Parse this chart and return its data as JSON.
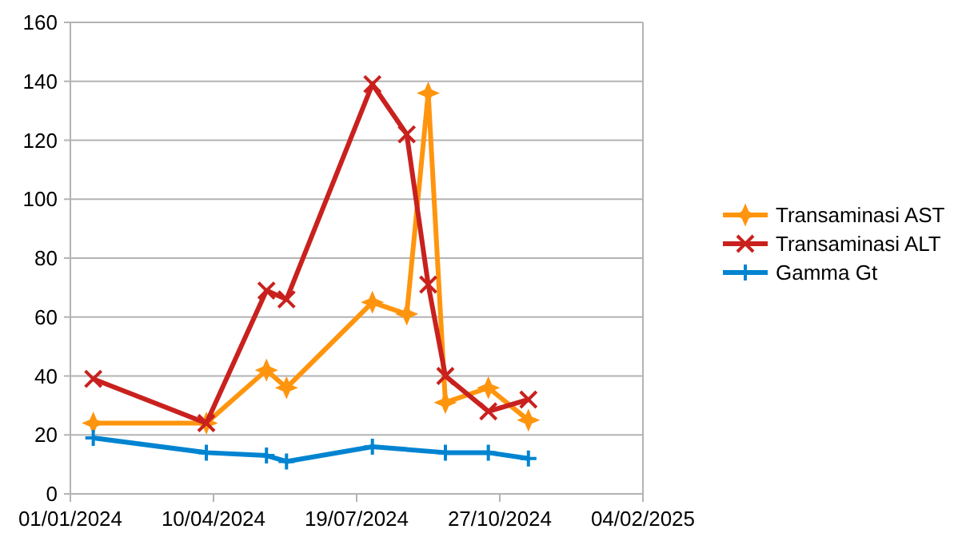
{
  "chart_data": {
    "type": "line",
    "x": [
      "2024-01-17",
      "2024-04-05",
      "2024-05-17",
      "2024-05-31",
      "2024-07-30",
      "2024-08-23",
      "2024-09-07",
      "2024-09-19",
      "2024-10-19",
      "2024-11-16"
    ],
    "series": [
      {
        "name": "Transaminasi AST",
        "color": "#ff950e",
        "marker": "star",
        "values": [
          24,
          24,
          42,
          36,
          65,
          61,
          136,
          31,
          36,
          25
        ]
      },
      {
        "name": "Transaminasi ALT",
        "color": "#c9211e",
        "marker": "cross",
        "values": [
          39,
          24,
          69,
          66,
          139,
          122,
          71,
          40,
          28,
          32
        ]
      },
      {
        "name": "Gamma Gt",
        "color": "#0084d1",
        "marker": "plus",
        "x": [
          "2024-01-17",
          "2024-04-05",
          "2024-05-17",
          "2024-05-31",
          "2024-07-30",
          "2024-09-19",
          "2024-10-19",
          "2024-11-16"
        ],
        "values": [
          19,
          14,
          13,
          11,
          16,
          14,
          14,
          12
        ]
      }
    ],
    "xlim": [
      "2024-01-01",
      "2025-02-04"
    ],
    "xticks": [
      {
        "value": "2024-01-01",
        "label": "01/01/2024"
      },
      {
        "value": "2024-04-10",
        "label": "10/04/2024"
      },
      {
        "value": "2024-07-19",
        "label": "19/07/2024"
      },
      {
        "value": "2024-10-27",
        "label": "27/10/2024"
      },
      {
        "value": "2025-02-04",
        "label": "04/02/2025"
      }
    ],
    "ylim": [
      0,
      160
    ],
    "yticks": [
      0,
      20,
      40,
      60,
      80,
      100,
      120,
      140,
      160
    ],
    "grid": "y",
    "legend": "right",
    "line_style": "solid"
  }
}
